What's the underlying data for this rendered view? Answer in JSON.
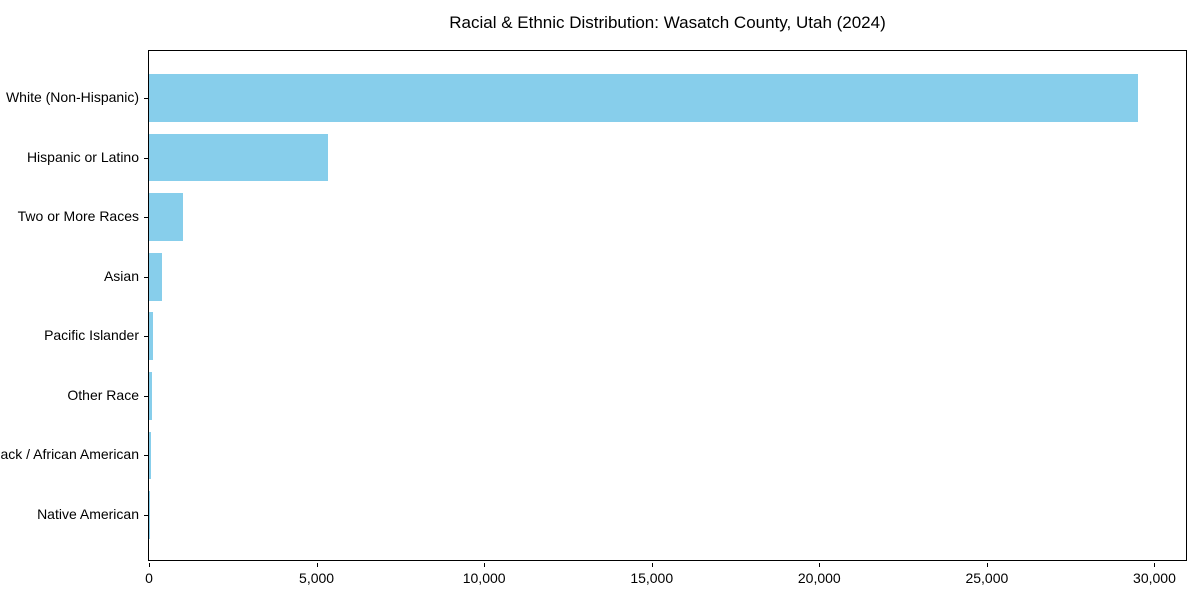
{
  "title": "Racial & Ethnic Distribution: Wasatch County, Utah (2024)",
  "colors": {
    "bar": "#87CEEB",
    "axis": "#000000",
    "background": "#ffffff"
  },
  "chart_data": {
    "type": "bar",
    "orientation": "horizontal",
    "title": "Racial & Ethnic Distribution: Wasatch County, Utah (2024)",
    "xlabel": "",
    "ylabel": "",
    "categories": [
      "White (Non-Hispanic)",
      "Hispanic or Latino",
      "Two or More Races",
      "Asian",
      "Pacific Islander",
      "Other Race",
      "Black / African American",
      "Native American"
    ],
    "values": [
      29500,
      5350,
      1000,
      380,
      120,
      100,
      70,
      10
    ],
    "xlim": [
      0,
      31000
    ],
    "x_ticks": [
      0,
      5000,
      10000,
      15000,
      20000,
      25000,
      30000
    ],
    "x_tick_labels": [
      "0",
      "5,000",
      "10,000",
      "15,000",
      "20,000",
      "25,000",
      "30,000"
    ],
    "bar_color": "#87CEEB",
    "grid": false,
    "legend": false
  }
}
